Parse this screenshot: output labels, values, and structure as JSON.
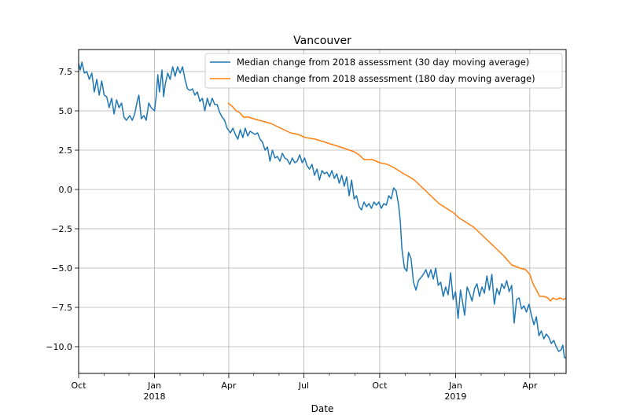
{
  "chart_data": {
    "type": "line",
    "title": "Vancouver",
    "xlabel": "Date",
    "ylabel": "",
    "x_axis_type": "date",
    "xlim": [
      "2017-10-01",
      "2019-05-15"
    ],
    "ylim": [
      -11.7,
      8.9
    ],
    "grid": true,
    "legend_position": "top-right",
    "x_ticks": [
      {
        "date": "2017-10-01",
        "label": "Oct",
        "sublabel": ""
      },
      {
        "date": "2018-01-01",
        "label": "Jan",
        "sublabel": "2018"
      },
      {
        "date": "2018-04-01",
        "label": "Apr",
        "sublabel": ""
      },
      {
        "date": "2018-07-01",
        "label": "Jul",
        "sublabel": ""
      },
      {
        "date": "2018-10-01",
        "label": "Oct",
        "sublabel": ""
      },
      {
        "date": "2019-01-01",
        "label": "Jan",
        "sublabel": "2019"
      },
      {
        "date": "2019-04-01",
        "label": "Apr",
        "sublabel": ""
      }
    ],
    "y_ticks": [
      {
        "value": 7.5,
        "label": "7.5"
      },
      {
        "value": 5.0,
        "label": "5.0"
      },
      {
        "value": 2.5,
        "label": "2.5"
      },
      {
        "value": 0.0,
        "label": "0.0"
      },
      {
        "value": -2.5,
        "label": "−2.5"
      },
      {
        "value": -5.0,
        "label": "−5.0"
      },
      {
        "value": -7.5,
        "label": "−7.5"
      },
      {
        "value": -10.0,
        "label": "−10.0"
      }
    ],
    "series": [
      {
        "name": "Median change from 2018 assessment (30 day moving average)",
        "color": "#1f77b4",
        "points": [
          [
            "2017-10-01",
            8.0
          ],
          [
            "2017-10-03",
            7.6
          ],
          [
            "2017-10-05",
            8.1
          ],
          [
            "2017-10-08",
            7.4
          ],
          [
            "2017-10-11",
            7.5
          ],
          [
            "2017-10-14",
            7.0
          ],
          [
            "2017-10-17",
            7.4
          ],
          [
            "2017-10-20",
            6.2
          ],
          [
            "2017-10-23",
            7.0
          ],
          [
            "2017-10-26",
            6.0
          ],
          [
            "2017-10-29",
            6.9
          ],
          [
            "2017-11-01",
            6.0
          ],
          [
            "2017-11-04",
            5.9
          ],
          [
            "2017-11-07",
            5.2
          ],
          [
            "2017-11-10",
            5.8
          ],
          [
            "2017-11-13",
            4.8
          ],
          [
            "2017-11-16",
            5.7
          ],
          [
            "2017-11-19",
            5.2
          ],
          [
            "2017-11-22",
            5.5
          ],
          [
            "2017-11-25",
            4.6
          ],
          [
            "2017-11-28",
            4.4
          ],
          [
            "2017-12-02",
            4.7
          ],
          [
            "2017-12-05",
            4.4
          ],
          [
            "2017-12-08",
            4.8
          ],
          [
            "2017-12-11",
            5.6
          ],
          [
            "2017-12-13",
            6.0
          ],
          [
            "2017-12-16",
            4.5
          ],
          [
            "2017-12-19",
            4.7
          ],
          [
            "2017-12-22",
            4.4
          ],
          [
            "2017-12-25",
            5.5
          ],
          [
            "2017-12-28",
            5.2
          ],
          [
            "2018-01-01",
            5.0
          ],
          [
            "2018-01-03",
            5.9
          ],
          [
            "2018-01-05",
            7.3
          ],
          [
            "2018-01-07",
            6.2
          ],
          [
            "2018-01-10",
            7.6
          ],
          [
            "2018-01-12",
            5.9
          ],
          [
            "2018-01-14",
            6.7
          ],
          [
            "2018-01-17",
            7.4
          ],
          [
            "2018-01-20",
            7.0
          ],
          [
            "2018-01-23",
            7.8
          ],
          [
            "2018-01-26",
            7.2
          ],
          [
            "2018-01-29",
            7.8
          ],
          [
            "2018-02-01",
            7.4
          ],
          [
            "2018-02-04",
            7.8
          ],
          [
            "2018-02-07",
            7.0
          ],
          [
            "2018-02-10",
            6.4
          ],
          [
            "2018-02-13",
            6.3
          ],
          [
            "2018-02-16",
            6.4
          ],
          [
            "2018-02-19",
            6.0
          ],
          [
            "2018-02-22",
            6.2
          ],
          [
            "2018-02-25",
            5.6
          ],
          [
            "2018-02-28",
            5.8
          ],
          [
            "2018-03-03",
            5.0
          ],
          [
            "2018-03-06",
            5.8
          ],
          [
            "2018-03-09",
            5.3
          ],
          [
            "2018-03-12",
            5.8
          ],
          [
            "2018-03-15",
            5.4
          ],
          [
            "2018-03-18",
            5.4
          ],
          [
            "2018-03-21",
            4.9
          ],
          [
            "2018-03-24",
            4.6
          ],
          [
            "2018-03-27",
            4.4
          ],
          [
            "2018-03-30",
            3.9
          ],
          [
            "2018-04-03",
            3.6
          ],
          [
            "2018-04-06",
            3.9
          ],
          [
            "2018-04-09",
            3.5
          ],
          [
            "2018-04-12",
            3.2
          ],
          [
            "2018-04-15",
            3.8
          ],
          [
            "2018-04-18",
            3.3
          ],
          [
            "2018-04-21",
            3.9
          ],
          [
            "2018-04-24",
            3.4
          ],
          [
            "2018-04-27",
            3.7
          ],
          [
            "2018-04-30",
            3.6
          ],
          [
            "2018-05-03",
            3.5
          ],
          [
            "2018-05-06",
            3.6
          ],
          [
            "2018-05-09",
            3.2
          ],
          [
            "2018-05-12",
            3.0
          ],
          [
            "2018-05-15",
            2.5
          ],
          [
            "2018-05-18",
            2.7
          ],
          [
            "2018-05-21",
            1.8
          ],
          [
            "2018-05-24",
            2.5
          ],
          [
            "2018-05-27",
            2.0
          ],
          [
            "2018-05-30",
            2.1
          ],
          [
            "2018-06-02",
            1.8
          ],
          [
            "2018-06-05",
            2.3
          ],
          [
            "2018-06-08",
            2.0
          ],
          [
            "2018-06-11",
            1.9
          ],
          [
            "2018-06-14",
            1.6
          ],
          [
            "2018-06-17",
            2.0
          ],
          [
            "2018-06-20",
            1.7
          ],
          [
            "2018-06-23",
            1.8
          ],
          [
            "2018-06-26",
            2.2
          ],
          [
            "2018-06-29",
            1.7
          ],
          [
            "2018-07-02",
            2.0
          ],
          [
            "2018-07-05",
            1.5
          ],
          [
            "2018-07-08",
            1.3
          ],
          [
            "2018-07-11",
            1.6
          ],
          [
            "2018-07-14",
            0.9
          ],
          [
            "2018-07-17",
            1.3
          ],
          [
            "2018-07-20",
            0.6
          ],
          [
            "2018-07-23",
            1.2
          ],
          [
            "2018-07-26",
            1.0
          ],
          [
            "2018-07-29",
            1.1
          ],
          [
            "2018-08-01",
            0.8
          ],
          [
            "2018-08-04",
            1.2
          ],
          [
            "2018-08-07",
            0.7
          ],
          [
            "2018-08-10",
            1.0
          ],
          [
            "2018-08-13",
            0.4
          ],
          [
            "2018-08-16",
            0.9
          ],
          [
            "2018-08-19",
            0.2
          ],
          [
            "2018-08-22",
            0.8
          ],
          [
            "2018-08-25",
            -0.4
          ],
          [
            "2018-08-28",
            0.6
          ],
          [
            "2018-08-31",
            -0.6
          ],
          [
            "2018-09-03",
            -0.4
          ],
          [
            "2018-09-06",
            -1.1
          ],
          [
            "2018-09-09",
            -1.3
          ],
          [
            "2018-09-12",
            -0.8
          ],
          [
            "2018-09-15",
            -1.1
          ],
          [
            "2018-09-18",
            -0.9
          ],
          [
            "2018-09-21",
            -1.2
          ],
          [
            "2018-09-24",
            -0.8
          ],
          [
            "2018-09-27",
            -1.0
          ],
          [
            "2018-09-30",
            -0.8
          ],
          [
            "2018-10-03",
            -1.2
          ],
          [
            "2018-10-06",
            -0.9
          ],
          [
            "2018-10-09",
            -1.0
          ],
          [
            "2018-10-12",
            -0.4
          ],
          [
            "2018-10-15",
            -0.6
          ],
          [
            "2018-10-18",
            0.1
          ],
          [
            "2018-10-21",
            -0.1
          ],
          [
            "2018-10-24",
            -1.0
          ],
          [
            "2018-10-26",
            -2.0
          ],
          [
            "2018-10-28",
            -3.8
          ],
          [
            "2018-10-31",
            -5.0
          ],
          [
            "2018-11-03",
            -5.2
          ],
          [
            "2018-11-05",
            -4.0
          ],
          [
            "2018-11-08",
            -4.4
          ],
          [
            "2018-11-11",
            -5.9
          ],
          [
            "2018-11-14",
            -6.4
          ],
          [
            "2018-11-17",
            -5.8
          ],
          [
            "2018-11-20",
            -5.6
          ],
          [
            "2018-11-23",
            -5.4
          ],
          [
            "2018-11-26",
            -5.1
          ],
          [
            "2018-11-29",
            -5.6
          ],
          [
            "2018-12-02",
            -5.1
          ],
          [
            "2018-12-05",
            -5.7
          ],
          [
            "2018-12-08",
            -5.0
          ],
          [
            "2018-12-11",
            -6.1
          ],
          [
            "2018-12-14",
            -5.9
          ],
          [
            "2018-12-17",
            -6.8
          ],
          [
            "2018-12-20",
            -6.2
          ],
          [
            "2018-12-23",
            -6.7
          ],
          [
            "2018-12-26",
            -5.3
          ],
          [
            "2018-12-29",
            -7.0
          ],
          [
            "2019-01-01",
            -6.5
          ],
          [
            "2019-01-04",
            -8.2
          ],
          [
            "2019-01-07",
            -6.4
          ],
          [
            "2019-01-09",
            -7.0
          ],
          [
            "2019-01-12",
            -8.0
          ],
          [
            "2019-01-15",
            -6.2
          ],
          [
            "2019-01-18",
            -6.6
          ],
          [
            "2019-01-21",
            -7.1
          ],
          [
            "2019-01-24",
            -6.3
          ],
          [
            "2019-01-27",
            -6.0
          ],
          [
            "2019-01-30",
            -6.8
          ],
          [
            "2019-02-02",
            -6.2
          ],
          [
            "2019-02-05",
            -6.6
          ],
          [
            "2019-02-08",
            -5.5
          ],
          [
            "2019-02-11",
            -6.4
          ],
          [
            "2019-02-14",
            -5.4
          ],
          [
            "2019-02-17",
            -7.3
          ],
          [
            "2019-02-20",
            -6.3
          ],
          [
            "2019-02-23",
            -6.7
          ],
          [
            "2019-02-26",
            -6.0
          ],
          [
            "2019-03-01",
            -6.3
          ],
          [
            "2019-03-04",
            -5.8
          ],
          [
            "2019-03-07",
            -6.5
          ],
          [
            "2019-03-10",
            -6.1
          ],
          [
            "2019-03-13",
            -8.5
          ],
          [
            "2019-03-16",
            -7.0
          ],
          [
            "2019-03-19",
            -6.9
          ],
          [
            "2019-03-22",
            -7.6
          ],
          [
            "2019-03-25",
            -7.4
          ],
          [
            "2019-03-28",
            -7.8
          ],
          [
            "2019-03-31",
            -7.3
          ],
          [
            "2019-04-03",
            -8.0
          ],
          [
            "2019-04-06",
            -8.6
          ],
          [
            "2019-04-09",
            -8.1
          ],
          [
            "2019-04-12",
            -9.3
          ],
          [
            "2019-04-15",
            -9.0
          ],
          [
            "2019-04-18",
            -9.5
          ],
          [
            "2019-04-21",
            -9.2
          ],
          [
            "2019-04-24",
            -9.4
          ],
          [
            "2019-04-27",
            -9.8
          ],
          [
            "2019-04-30",
            -9.6
          ],
          [
            "2019-05-03",
            -10.0
          ],
          [
            "2019-05-06",
            -10.3
          ],
          [
            "2019-05-09",
            -10.2
          ],
          [
            "2019-05-11",
            -9.9
          ],
          [
            "2019-05-13",
            -10.7
          ],
          [
            "2019-05-15",
            -10.7
          ]
        ]
      },
      {
        "name": "Median change from 2018 assessment (180 day moving average)",
        "color": "#ff7f0e",
        "points": [
          [
            "2018-03-31",
            5.5
          ],
          [
            "2018-04-05",
            5.3
          ],
          [
            "2018-04-10",
            5.0
          ],
          [
            "2018-04-14",
            4.9
          ],
          [
            "2018-04-19",
            4.6
          ],
          [
            "2018-04-25",
            4.6
          ],
          [
            "2018-05-01",
            4.5
          ],
          [
            "2018-05-08",
            4.4
          ],
          [
            "2018-05-15",
            4.3
          ],
          [
            "2018-05-22",
            4.2
          ],
          [
            "2018-05-30",
            4.0
          ],
          [
            "2018-06-07",
            3.8
          ],
          [
            "2018-06-15",
            3.6
          ],
          [
            "2018-06-24",
            3.5
          ],
          [
            "2018-07-03",
            3.3
          ],
          [
            "2018-07-15",
            3.2
          ],
          [
            "2018-07-27",
            3.0
          ],
          [
            "2018-08-08",
            2.8
          ],
          [
            "2018-08-20",
            2.6
          ],
          [
            "2018-08-31",
            2.4
          ],
          [
            "2018-09-06",
            2.2
          ],
          [
            "2018-09-12",
            1.9
          ],
          [
            "2018-09-22",
            1.9
          ],
          [
            "2018-10-01",
            1.7
          ],
          [
            "2018-10-10",
            1.6
          ],
          [
            "2018-10-18",
            1.4
          ],
          [
            "2018-10-24",
            1.2
          ],
          [
            "2018-10-30",
            1.0
          ],
          [
            "2018-11-06",
            0.8
          ],
          [
            "2018-11-12",
            0.6
          ],
          [
            "2018-11-18",
            0.3
          ],
          [
            "2018-11-24",
            0.0
          ],
          [
            "2018-11-30",
            -0.3
          ],
          [
            "2018-12-06",
            -0.6
          ],
          [
            "2018-12-12",
            -0.9
          ],
          [
            "2018-12-18",
            -1.1
          ],
          [
            "2018-12-24",
            -1.3
          ],
          [
            "2018-12-30",
            -1.5
          ],
          [
            "2019-01-05",
            -1.8
          ],
          [
            "2019-01-11",
            -2.0
          ],
          [
            "2019-01-17",
            -2.2
          ],
          [
            "2019-01-23",
            -2.4
          ],
          [
            "2019-01-29",
            -2.7
          ],
          [
            "2019-02-04",
            -3.0
          ],
          [
            "2019-02-10",
            -3.3
          ],
          [
            "2019-02-16",
            -3.6
          ],
          [
            "2019-02-22",
            -3.9
          ],
          [
            "2019-02-28",
            -4.2
          ],
          [
            "2019-03-05",
            -4.5
          ],
          [
            "2019-03-10",
            -4.8
          ],
          [
            "2019-03-15",
            -4.9
          ],
          [
            "2019-03-20",
            -5.0
          ],
          [
            "2019-03-27",
            -5.1
          ],
          [
            "2019-04-01",
            -5.4
          ],
          [
            "2019-04-05",
            -6.0
          ],
          [
            "2019-04-09",
            -6.4
          ],
          [
            "2019-04-13",
            -6.8
          ],
          [
            "2019-04-18",
            -6.8
          ],
          [
            "2019-04-23",
            -6.9
          ],
          [
            "2019-04-26",
            -7.1
          ],
          [
            "2019-04-29",
            -6.9
          ],
          [
            "2019-05-03",
            -7.0
          ],
          [
            "2019-05-08",
            -6.9
          ],
          [
            "2019-05-12",
            -7.0
          ],
          [
            "2019-05-15",
            -6.9
          ]
        ]
      }
    ]
  }
}
